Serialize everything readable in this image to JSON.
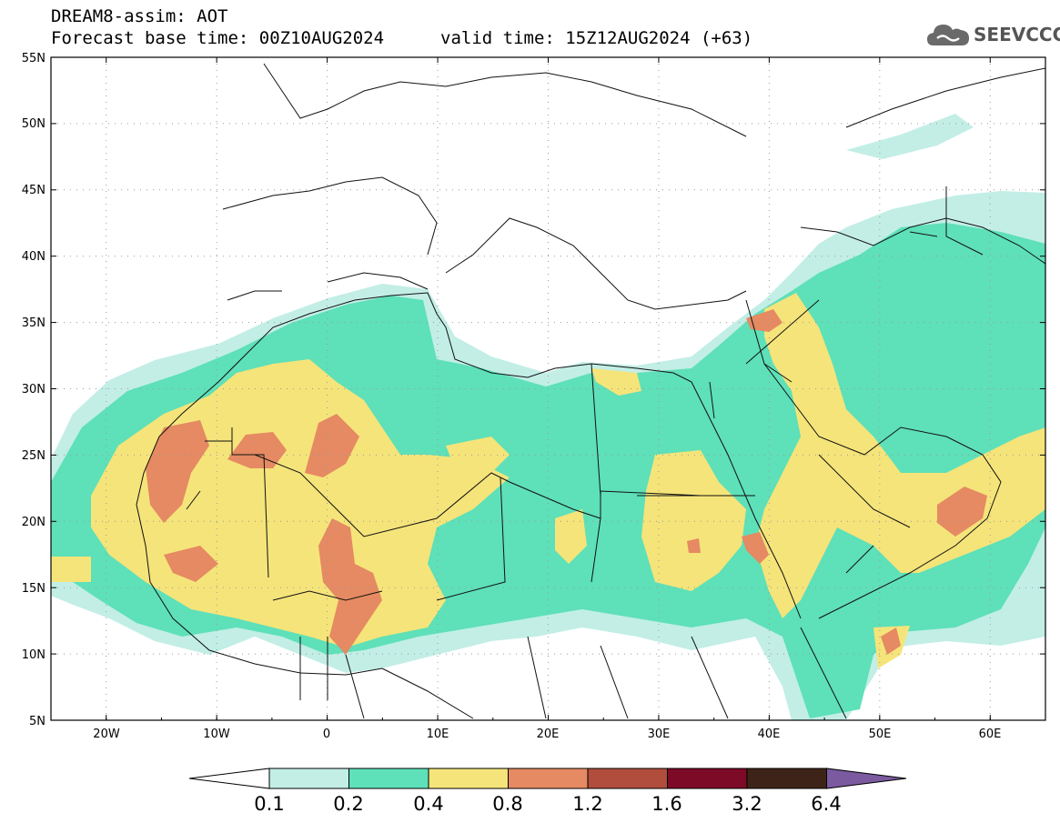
{
  "header": {
    "model_line": "DREAM8-assim: AOT",
    "base_time_line": "Forecast base time: 00Z10AUG2024",
    "valid_time_line": "valid time: 15Z12AUG2024 (+63)"
  },
  "logo": {
    "text": "SEEVCCC",
    "icon": "cloud-icon"
  },
  "map": {
    "projection": "lat-lon",
    "lon_range": [
      -25,
      65
    ],
    "lat_range": [
      5,
      55
    ],
    "lat_ticks": [
      "5N",
      "10N",
      "15N",
      "20N",
      "25N",
      "30N",
      "35N",
      "40N",
      "45N",
      "50N",
      "55N"
    ],
    "lon_ticks": [
      "20W",
      "10W",
      "0",
      "10E",
      "20E",
      "30E",
      "40E",
      "50E",
      "60E"
    ],
    "gridlines": "dotted",
    "field": "Aerosol optical thickness (AOT)"
  },
  "colorbar": {
    "levels": [
      "0.1",
      "0.2",
      "0.4",
      "0.8",
      "1.2",
      "1.6",
      "3.2",
      "6.4"
    ],
    "colors": [
      "#ffffff",
      "#c2eee6",
      "#5ee0b8",
      "#f5e47a",
      "#e58a62",
      "#b14d3c",
      "#7d0a26",
      "#3e2418",
      "#7b5aa0"
    ],
    "extend": "both"
  }
}
